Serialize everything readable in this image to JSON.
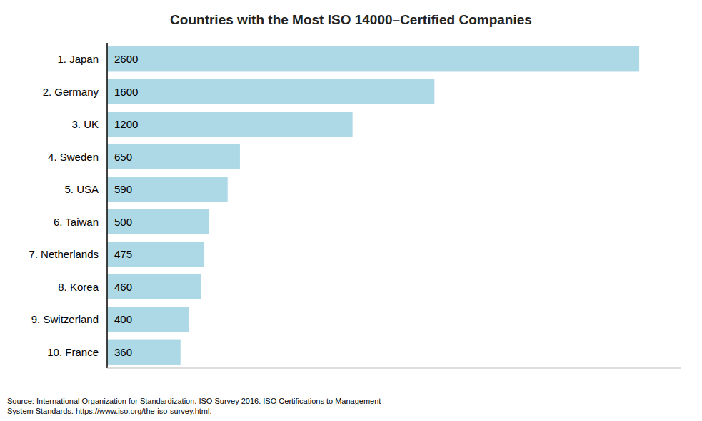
{
  "chart_data": {
    "type": "bar",
    "orientation": "horizontal",
    "title": "Countries with the Most ISO 14000–Certified Companies",
    "categories": [
      "1. Japan",
      "2. Germany",
      "3. UK",
      "4. Sweden",
      "5. USA",
      "6. Taiwan",
      "7. Netherlands",
      "8. Korea",
      "9. Switzerland",
      "10. France"
    ],
    "values": [
      2600,
      1600,
      1200,
      650,
      590,
      500,
      475,
      460,
      400,
      360
    ],
    "color": "#add8e6",
    "xlim": [
      0,
      2800
    ],
    "data_labels": true,
    "tick_labels": "y",
    "grid": false,
    "annotations": [
      "Source: International Organization for Standardization. ISO Survey 2016. ISO Certifications to Management\nSystem Standards. https://www.iso.org/the-iso-survey.html."
    ]
  }
}
